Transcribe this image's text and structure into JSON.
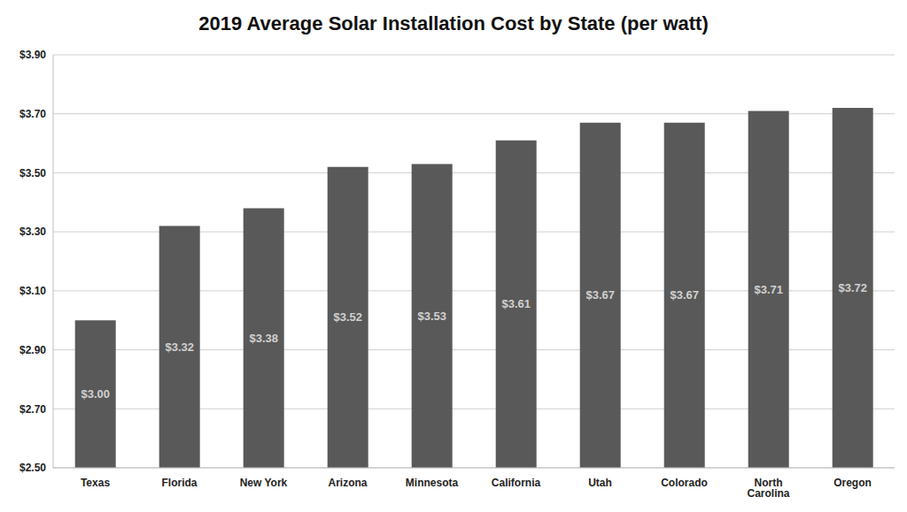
{
  "chart_data": {
    "type": "bar",
    "title": "2019 Average Solar Installation Cost by State (per watt)",
    "categories": [
      "Texas",
      "Florida",
      "New York",
      "Arizona",
      "Minnesota",
      "California",
      "Utah",
      "Colorado",
      "North Carolina",
      "Oregon"
    ],
    "values": [
      3.0,
      3.32,
      3.38,
      3.52,
      3.53,
      3.61,
      3.67,
      3.67,
      3.71,
      3.72
    ],
    "value_labels": [
      "$3.00",
      "$3.32",
      "$3.38",
      "$3.52",
      "$3.53",
      "$3.61",
      "$3.67",
      "$3.67",
      "$3.71",
      "$3.72"
    ],
    "color": "#595959",
    "ylim": [
      2.5,
      3.9
    ],
    "yticks": [
      {
        "value": 2.5,
        "label": "$2.50"
      },
      {
        "value": 2.7,
        "label": "$2.70"
      },
      {
        "value": 2.9,
        "label": "$2.90"
      },
      {
        "value": 3.1,
        "label": "$3.10"
      },
      {
        "value": 3.3,
        "label": "$3.30"
      },
      {
        "value": 3.5,
        "label": "$3.50"
      },
      {
        "value": 3.7,
        "label": "$3.70"
      },
      {
        "value": 3.9,
        "label": "$3.90"
      }
    ],
    "grid": true,
    "data_labels": true
  }
}
